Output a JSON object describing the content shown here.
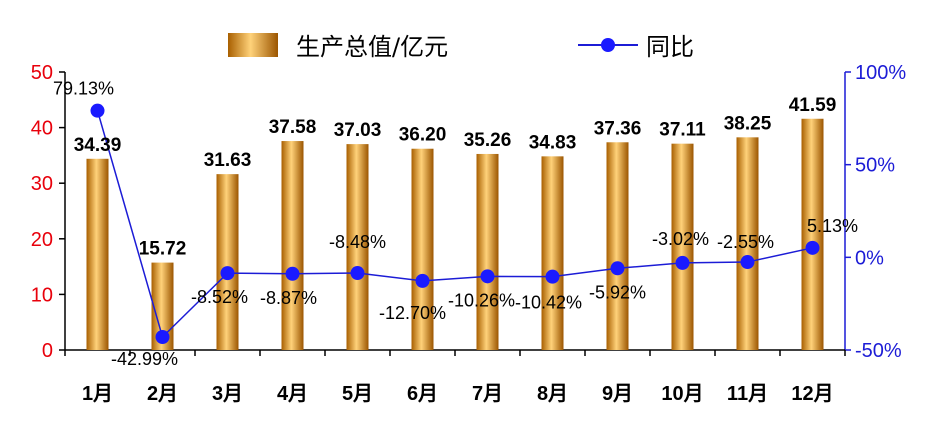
{
  "chart_data": {
    "type": "bar+line",
    "categories": [
      "1月",
      "2月",
      "3月",
      "4月",
      "5月",
      "6月",
      "7月",
      "8月",
      "9月",
      "10月",
      "11月",
      "12月"
    ],
    "series": [
      {
        "name": "生产总值/亿元",
        "type": "bar",
        "axis": "left",
        "values": [
          34.39,
          15.72,
          31.63,
          37.58,
          37.03,
          36.2,
          35.26,
          34.83,
          37.36,
          37.11,
          38.25,
          41.59
        ],
        "labels": [
          "34.39",
          "15.72",
          "31.63",
          "37.58",
          "37.03",
          "36.20",
          "35.26",
          "34.83",
          "37.36",
          "37.11",
          "38.25",
          "41.59"
        ]
      },
      {
        "name": "同比",
        "type": "line",
        "axis": "right",
        "values": [
          79.13,
          -42.99,
          -8.52,
          -8.87,
          -8.48,
          -12.7,
          -10.26,
          -10.42,
          -5.92,
          -3.02,
          -2.55,
          5.13
        ],
        "labels": [
          "79.13%",
          "-42.99%",
          "-8.52%",
          "-8.87%",
          "-8.48%",
          "-12.70%",
          "-10.26%",
          "-10.42%",
          "-5.92%",
          "-3.02%",
          "-2.55%",
          "5.13%"
        ]
      }
    ],
    "left_axis": {
      "min": 0,
      "max": 50,
      "ticks": [
        "0",
        "10",
        "20",
        "30",
        "40",
        "50"
      ]
    },
    "right_axis": {
      "min": -50,
      "max": 100,
      "ticks": [
        "-50%",
        "0%",
        "50%",
        "100%"
      ]
    },
    "legend_position": "top-center",
    "grid": false,
    "colors": {
      "bar": "#e08a0c",
      "bar_light": "#ffd27a",
      "bar_dark": "#a85f00",
      "line": "#1c1cd6",
      "marker": "#1a1aff",
      "left_axis": "#e8000b",
      "right_axis": "#1c1cd6"
    }
  }
}
